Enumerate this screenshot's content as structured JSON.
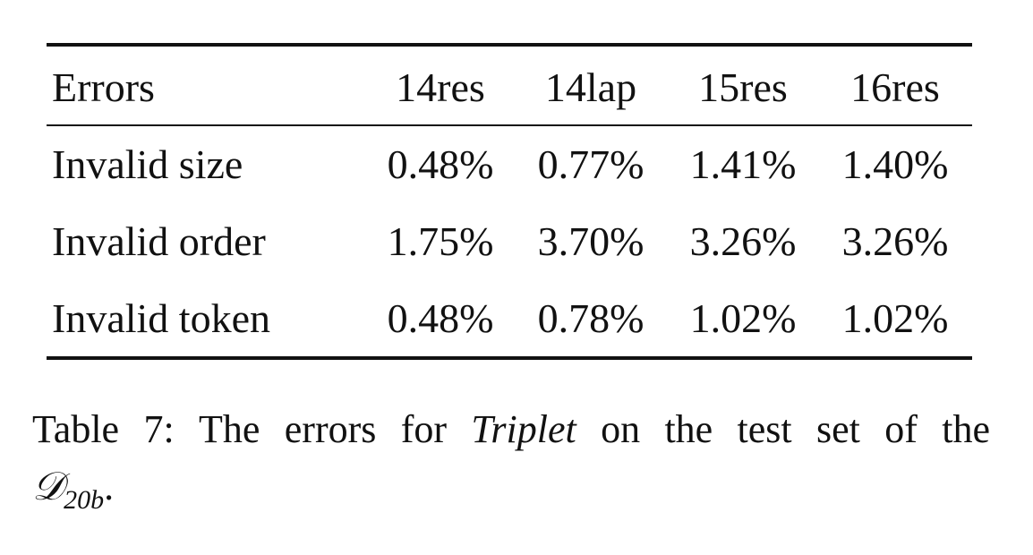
{
  "table": {
    "headers": [
      "Errors",
      "14res",
      "14lap",
      "15res",
      "16res"
    ],
    "rows": [
      {
        "label": "Invalid size",
        "values": [
          "0.48%",
          "0.77%",
          "1.41%",
          "1.40%"
        ]
      },
      {
        "label": "Invalid order",
        "values": [
          "1.75%",
          "3.70%",
          "3.26%",
          "3.26%"
        ]
      },
      {
        "label": "Invalid token",
        "values": [
          "0.48%",
          "0.78%",
          "1.02%",
          "1.02%"
        ]
      }
    ]
  },
  "caption": {
    "words": [
      "Table",
      "7:",
      "The",
      "errors",
      "for"
    ],
    "emphasis": "Triplet",
    "rest_words": [
      "on",
      "the",
      "test",
      "set",
      "of",
      "the"
    ],
    "math_symbol": "𝒟",
    "math_subscript": "20b",
    "end_punct": "."
  }
}
